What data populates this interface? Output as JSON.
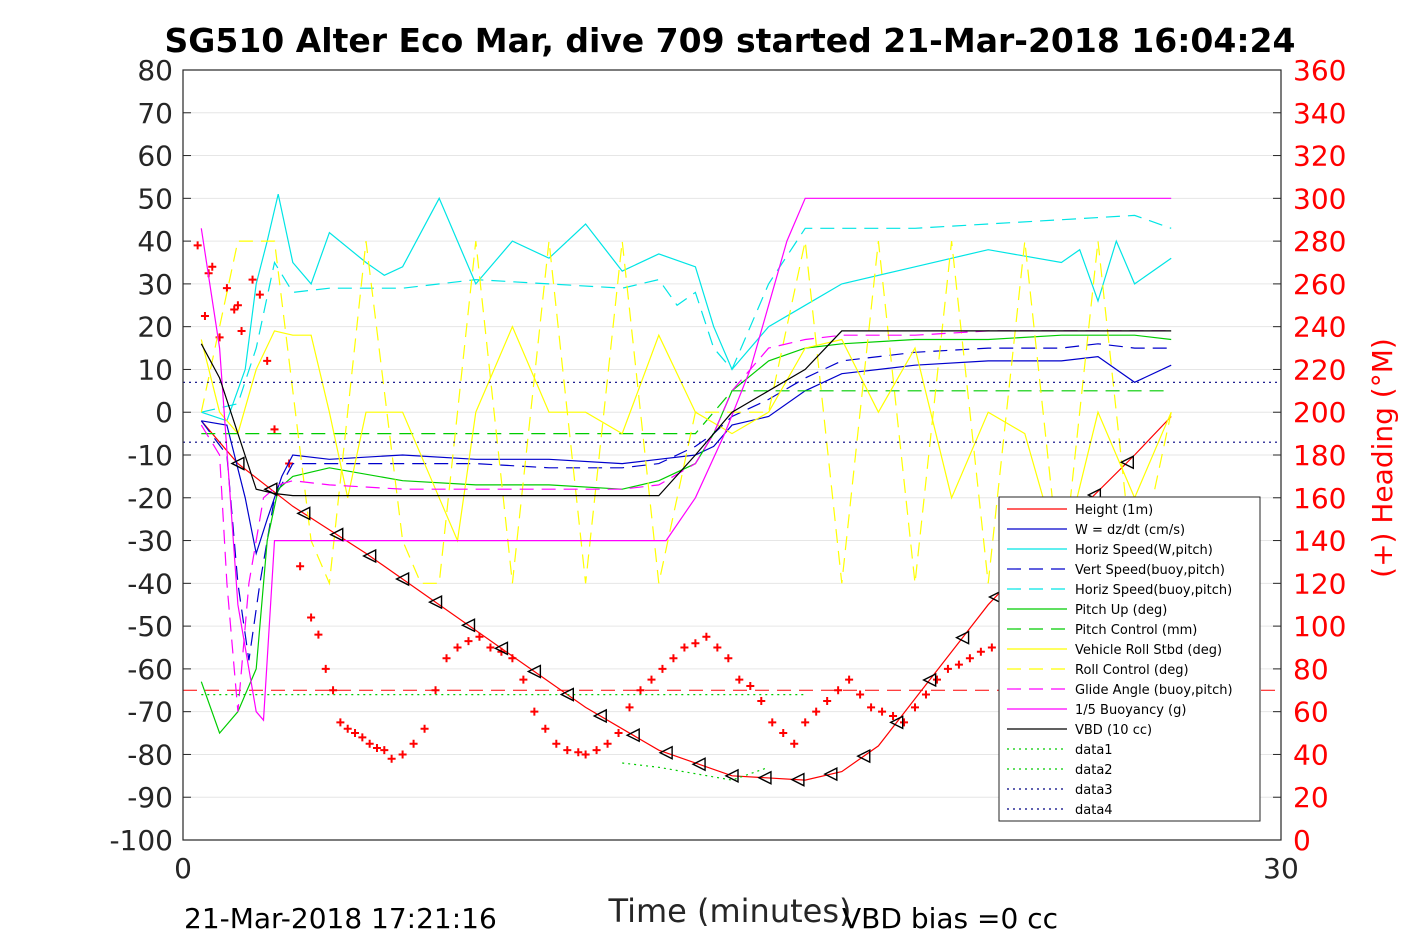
{
  "chart_data": {
    "type": "line",
    "title": "SG510 Alter Eco Mar, dive 709 started 21-Mar-2018 16:04:24",
    "xlabel": "Time (minutes)",
    "ylabel": "",
    "y2label": "(+) Heading (°M)",
    "xlim": [
      0,
      30
    ],
    "ylim": [
      -100,
      80
    ],
    "y2lim": [
      0,
      360
    ],
    "x_ticks": [
      "0",
      "30"
    ],
    "y_ticks": [
      "80",
      "70",
      "60",
      "50",
      "40",
      "30",
      "20",
      "10",
      "0",
      "-10",
      "-20",
      "-30",
      "-40",
      "-50",
      "-60",
      "-70",
      "-80",
      "-90",
      "-100"
    ],
    "y2_ticks": [
      "360",
      "340",
      "320",
      "300",
      "280",
      "260",
      "240",
      "220",
      "200",
      "180",
      "160",
      "140",
      "120",
      "100",
      "80",
      "60",
      "40",
      "20",
      "0"
    ],
    "grid": true,
    "legend_position": "bottom-right",
    "footer_left": "21-Mar-2018 17:21:16",
    "footer_right": "VBD bias =0 cc",
    "series": [
      {
        "name": "Height (1m)",
        "color": "#ff0000",
        "style": "solid",
        "x": [
          0.5,
          1.5,
          3,
          5,
          7,
          9,
          11,
          13,
          15,
          17,
          18,
          19,
          20,
          21,
          22,
          24,
          26,
          27
        ],
        "y": [
          -2,
          -12,
          -22,
          -33,
          -45,
          -57,
          -69,
          -79,
          -85,
          -86,
          -84,
          -78,
          -67,
          -56,
          -45,
          -27,
          -10,
          -1
        ]
      },
      {
        "name": "W = dz/dt (cm/s)",
        "color": "#0000cc",
        "style": "solid",
        "x": [
          0.5,
          1.2,
          1.7,
          2,
          2.3,
          2.7,
          3,
          4,
          6,
          8,
          10,
          12,
          13,
          14,
          14.5,
          15,
          16,
          17,
          18,
          20,
          22,
          24,
          25,
          26,
          27
        ],
        "y": [
          -2,
          -3,
          -20,
          -33,
          -25,
          -15,
          -10,
          -11,
          -10,
          -11,
          -11,
          -12,
          -11,
          -10,
          -8,
          -3,
          -1,
          5,
          9,
          11,
          12,
          12,
          13,
          7,
          11
        ]
      },
      {
        "name": "Horiz Speed(W,pitch)",
        "color": "#00e5e5",
        "style": "solid",
        "x": [
          0.5,
          1.2,
          1.7,
          2,
          2.3,
          2.6,
          3,
          3.5,
          4,
          5,
          5.5,
          6,
          7,
          8,
          9,
          10,
          11,
          12,
          13,
          14,
          14.5,
          15,
          16,
          17,
          18,
          20,
          22,
          24,
          24.5,
          25,
          25.5,
          26,
          27
        ],
        "y": [
          0,
          -2,
          10,
          30,
          40,
          51,
          35,
          30,
          42,
          35,
          32,
          34,
          50,
          30,
          40,
          36,
          44,
          33,
          37,
          34,
          20,
          10,
          20,
          25,
          30,
          34,
          38,
          35,
          38,
          26,
          40,
          30,
          36
        ]
      },
      {
        "name": "Vert Speed(buoy,pitch)",
        "color": "#0000cc",
        "style": "dash",
        "x": [
          0.5,
          1.2,
          1.5,
          1.8,
          2.1,
          2.5,
          3,
          4,
          6,
          8,
          10,
          12,
          13,
          14,
          14.5,
          15,
          16,
          17,
          18,
          20,
          22,
          24,
          25,
          26,
          27
        ],
        "y": [
          -2,
          -10,
          -40,
          -58,
          -40,
          -20,
          -12,
          -12,
          -12,
          -12,
          -13,
          -13,
          -12,
          -8,
          -5,
          -1,
          3,
          8,
          12,
          14,
          15,
          15,
          16,
          15,
          15
        ]
      },
      {
        "name": "Horiz Speed(buoy,pitch)",
        "color": "#00e5e5",
        "style": "dash",
        "x": [
          0.5,
          1.5,
          2,
          2.5,
          3,
          4,
          6,
          8,
          10,
          12,
          13,
          13.5,
          14,
          14.5,
          15,
          16,
          17,
          18,
          20,
          22,
          24,
          26,
          27
        ],
        "y": [
          0,
          2,
          15,
          35,
          28,
          29,
          29,
          31,
          30,
          29,
          31,
          25,
          28,
          15,
          10,
          30,
          43,
          43,
          43,
          44,
          45,
          46,
          43
        ]
      },
      {
        "name": "Pitch Up (deg)",
        "color": "#00cc00",
        "style": "solid",
        "x": [
          0.5,
          1,
          1.5,
          2,
          2.3,
          2.6,
          3,
          4,
          6,
          8,
          10,
          12,
          13,
          14,
          14.5,
          15,
          16,
          17,
          18,
          20,
          22,
          24,
          26,
          27
        ],
        "y": [
          -63,
          -75,
          -70,
          -60,
          -30,
          -18,
          -15,
          -13,
          -16,
          -17,
          -17,
          -18,
          -16,
          -12,
          -5,
          5,
          12,
          15,
          16,
          17,
          17,
          18,
          18,
          17
        ]
      },
      {
        "name": "Pitch Control (mm)",
        "color": "#00cc00",
        "style": "dash",
        "x": [
          0.5,
          1.5,
          2.5,
          4,
          6,
          8,
          10,
          12,
          13,
          14,
          15,
          16,
          18,
          20,
          22,
          24,
          26,
          27
        ],
        "y": [
          -5,
          -5,
          -5,
          -5,
          -5,
          -5,
          -5,
          -5,
          -5,
          -5,
          5,
          5,
          5,
          5,
          5,
          5,
          5,
          5
        ]
      },
      {
        "name": "Vehicle Roll Stbd (deg)",
        "color": "#ffff00",
        "style": "solid",
        "x": [
          0.5,
          1,
          1.5,
          2,
          2.5,
          3,
          3.5,
          4,
          4.5,
          5,
          6,
          7,
          7.5,
          8,
          9,
          10,
          11,
          12,
          13,
          14,
          15,
          16,
          17,
          18,
          19,
          20,
          21,
          22,
          23,
          24,
          25,
          26,
          27
        ],
        "y": [
          17,
          0,
          -5,
          10,
          19,
          18,
          18,
          0,
          -20,
          0,
          0,
          -20,
          -30,
          0,
          20,
          0,
          0,
          -5,
          18,
          0,
          -5,
          0,
          15,
          17,
          0,
          15,
          -20,
          0,
          -5,
          -35,
          0,
          -20,
          0
        ]
      },
      {
        "name": "Roll Control (deg)",
        "color": "#ffff00",
        "style": "dash",
        "x": [
          0.5,
          1.5,
          2,
          2.5,
          3.5,
          4,
          5,
          6,
          6.5,
          7,
          8,
          9,
          10,
          11,
          12,
          13,
          14,
          15,
          16,
          17,
          18,
          19,
          20,
          21,
          22,
          23,
          24,
          25,
          26,
          27
        ],
        "y": [
          0,
          40,
          40,
          40,
          -30,
          -40,
          40,
          -30,
          -40,
          -40,
          40,
          -40,
          40,
          -40,
          40,
          -40,
          0,
          0,
          0,
          40,
          -40,
          40,
          -40,
          40,
          -40,
          40,
          -40,
          40,
          -40,
          0
        ]
      },
      {
        "name": "Glide Angle (buoy,pitch)",
        "color": "#ff00ff",
        "style": "dash",
        "x": [
          0.5,
          1,
          1.2,
          1.5,
          1.8,
          2.2,
          2.6,
          3,
          4,
          6,
          8,
          10,
          12,
          13,
          14,
          14.5,
          15,
          16,
          17,
          18,
          20,
          22,
          24,
          26,
          27
        ],
        "y": [
          -3,
          -10,
          -40,
          -70,
          -40,
          -20,
          -17,
          -16,
          -17,
          -18,
          -18,
          -18,
          -18,
          -17,
          -12,
          -5,
          5,
          15,
          17,
          18,
          18,
          19,
          19,
          19,
          19
        ]
      },
      {
        "name": "1/5 Buoyancy (g)",
        "color": "#ff00ff",
        "style": "solid",
        "x": [
          0.5,
          1,
          1.5,
          2,
          2.2,
          2.5,
          3,
          5,
          8,
          10,
          12,
          12.3,
          13.2,
          14,
          14.8,
          15.5,
          16,
          16.5,
          17,
          18,
          20,
          22,
          24,
          26,
          27
        ],
        "y": [
          43,
          15,
          -45,
          -70,
          -72,
          -30,
          -30,
          -30,
          -30,
          -30,
          -30,
          -30,
          -30,
          -20,
          -5,
          10,
          25,
          40,
          50,
          50,
          50,
          50,
          50,
          50,
          50
        ]
      },
      {
        "name": "VBD (10 cc)",
        "color": "#000000",
        "style": "solid",
        "x": [
          0.5,
          1,
          1.5,
          2,
          2.5,
          3,
          6,
          9,
          12,
          12.5,
          13,
          14,
          15,
          16,
          17,
          18,
          20,
          22,
          24,
          26,
          27
        ],
        "y": [
          16,
          8,
          -5,
          -18,
          -19,
          -19.5,
          -19.5,
          -19.5,
          -19.5,
          -19.5,
          -19.5,
          -10,
          0,
          5,
          10,
          19,
          19,
          19,
          19,
          19,
          19
        ]
      },
      {
        "name": "data1",
        "color": "#00cc00",
        "style": "dot",
        "x": [
          0.5,
          2,
          15,
          17
        ],
        "y": [
          -66,
          -66,
          -66,
          -66
        ]
      },
      {
        "name": "data2",
        "color": "#00cc00",
        "style": "dot",
        "x": [
          12,
          13,
          15,
          16
        ],
        "y": [
          -82,
          -83,
          -86,
          -83
        ]
      },
      {
        "name": "data3",
        "color": "#000080",
        "style": "dot",
        "x": [
          0,
          30
        ],
        "y": [
          7,
          7
        ]
      },
      {
        "name": "data4",
        "color": "#000080",
        "style": "dot",
        "x": [
          0,
          30
        ],
        "y": [
          -7,
          -7
        ]
      }
    ],
    "heading_points": {
      "color": "#ff0000",
      "axis": "right",
      "x": [
        0.4,
        0.6,
        0.7,
        0.8,
        1,
        1.2,
        1.4,
        1.5,
        1.6,
        1.9,
        2.1,
        2.3,
        2.5,
        2.9,
        3.2,
        3.5,
        3.7,
        3.9,
        4.1,
        4.3,
        4.5,
        4.7,
        4.9,
        5.1,
        5.3,
        5.5,
        5.7,
        6,
        6.3,
        6.6,
        6.9,
        7.2,
        7.5,
        7.8,
        8.1,
        8.4,
        8.7,
        9,
        9.3,
        9.6,
        9.9,
        10.2,
        10.5,
        10.8,
        11,
        11.3,
        11.6,
        11.9,
        12.2,
        12.5,
        12.8,
        13.1,
        13.4,
        13.7,
        14,
        14.3,
        14.6,
        14.9,
        15.2,
        15.5,
        15.8,
        16.1,
        16.4,
        16.7,
        17,
        17.3,
        17.6,
        17.9,
        18.2,
        18.5,
        18.8,
        19.1,
        19.4,
        19.7,
        20,
        20.3,
        20.6,
        20.9,
        21.2,
        21.5,
        21.8,
        22.1,
        22.4,
        22.7,
        23,
        23.3,
        23.6,
        23.9,
        24.2,
        24.5,
        24.8,
        25.1,
        25.4,
        25.7,
        26,
        26.3,
        26.6
      ],
      "y": [
        278,
        245,
        265,
        268,
        235,
        258,
        248,
        250,
        238,
        262,
        255,
        224,
        192,
        176,
        128,
        104,
        96,
        80,
        70,
        55,
        52,
        50,
        48,
        45,
        43,
        42,
        38,
        40,
        45,
        52,
        70,
        85,
        90,
        93,
        95,
        90,
        88,
        85,
        75,
        60,
        52,
        45,
        42,
        41,
        40,
        42,
        45,
        50,
        62,
        70,
        75,
        80,
        85,
        90,
        92,
        95,
        90,
        85,
        75,
        72,
        65,
        55,
        50,
        45,
        55,
        60,
        65,
        70,
        75,
        68,
        62,
        60,
        58,
        55,
        62,
        68,
        75,
        80,
        82,
        85,
        88,
        90,
        92,
        88,
        80,
        78,
        72,
        62,
        55,
        45,
        35,
        30,
        28,
        25,
        30,
        35,
        40
      ]
    },
    "avg_heading": 70
  }
}
